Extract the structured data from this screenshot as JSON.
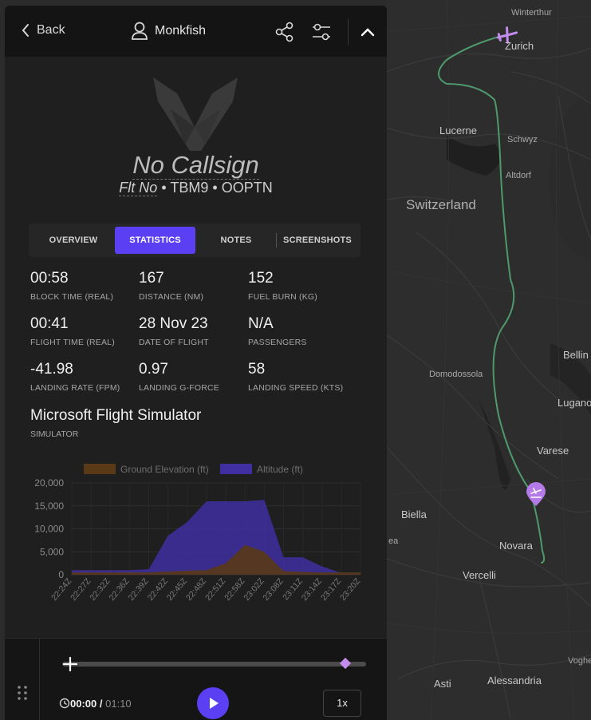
{
  "header": {
    "back_label": "Back",
    "user_name": "Monkfish",
    "icons": [
      "chevron-left-icon",
      "user-icon",
      "share-icon",
      "sliders-icon",
      "chevron-up-icon"
    ]
  },
  "flight": {
    "callsign": "No Callsign",
    "flight_no_label": "Flt No",
    "aircraft": "TBM9",
    "registration": "OOPTN",
    "separator": "•"
  },
  "tabs": [
    {
      "label": "OVERVIEW",
      "active": false
    },
    {
      "label": "STATISTICS",
      "active": true
    },
    {
      "label": "NOTES",
      "active": false
    },
    {
      "label": "SCREENSHOTS",
      "active": false
    }
  ],
  "stats": [
    {
      "value": "00:58",
      "label": "BLOCK TIME (REAL)"
    },
    {
      "value": "167",
      "label": "DISTANCE (NM)"
    },
    {
      "value": "152",
      "label": "FUEL BURN (KG)"
    },
    {
      "value": "00:41",
      "label": "FLIGHT TIME (REAL)"
    },
    {
      "value": "28 Nov 23",
      "label": "DATE OF FLIGHT"
    },
    {
      "value": "N/A",
      "label": "PASSENGERS"
    },
    {
      "value": "-41.98",
      "label": "LANDING RATE (FPM)"
    },
    {
      "value": "0.97",
      "label": "LANDING G-FORCE"
    },
    {
      "value": "58",
      "label": "LANDING SPEED (KTS)"
    }
  ],
  "simulator": {
    "value": "Microsoft Flight Simulator",
    "label": "SIMULATOR"
  },
  "chart_data": {
    "type": "area",
    "x": [
      "22:24Z",
      "22:27Z",
      "22:32Z",
      "22:36Z",
      "22:39Z",
      "22:42Z",
      "22:45Z",
      "22:48Z",
      "22:51Z",
      "22:58Z",
      "23:02Z",
      "23:08Z",
      "23:11Z",
      "23:14Z",
      "23:17Z",
      "23:20Z"
    ],
    "series": [
      {
        "name": "Ground Elevation (ft)",
        "color": "#5a3a16",
        "values": [
          500,
          500,
          500,
          500,
          500,
          700,
          900,
          1000,
          2500,
          6500,
          5000,
          800,
          600,
          500,
          500,
          500
        ]
      },
      {
        "name": "Altitude (ft)",
        "color": "#3f2fa0",
        "values": [
          1000,
          1000,
          1000,
          1000,
          1200,
          8500,
          11500,
          16000,
          16000,
          16000,
          16300,
          3800,
          3800,
          1800,
          400,
          400
        ]
      }
    ],
    "ylim": [
      0,
      20000
    ],
    "yticks": [
      "0",
      "5,000",
      "10,000",
      "15,000",
      "20,000"
    ],
    "grid": true,
    "legend": "top"
  },
  "player": {
    "current_time": "00:00",
    "separator": "/",
    "total_time": "01:10",
    "speed": "1x",
    "progress": 0.0,
    "marker_position": 0.96,
    "icons": [
      "drag-grip-icon",
      "history-icon",
      "play-icon"
    ]
  },
  "map": {
    "labels": [
      {
        "text": "Winterthur",
        "size": "small"
      },
      {
        "text": "Zurich",
        "size": "normal"
      },
      {
        "text": "Lucerne",
        "size": "normal"
      },
      {
        "text": "Schwyz",
        "size": "small"
      },
      {
        "text": "Altdorf",
        "size": "small"
      },
      {
        "text": "Switzerland",
        "size": "big"
      },
      {
        "text": "Bellin",
        "size": "normal"
      },
      {
        "text": "Domodossola",
        "size": "small"
      },
      {
        "text": "Lugano",
        "size": "normal"
      },
      {
        "text": "Varese",
        "size": "normal"
      },
      {
        "text": "Biella",
        "size": "normal"
      },
      {
        "text": "Novara",
        "size": "normal"
      },
      {
        "text": "Vercelli",
        "size": "normal"
      },
      {
        "text": "Voghe",
        "size": "small"
      },
      {
        "text": "Asti",
        "size": "normal"
      },
      {
        "text": "Alessandria",
        "size": "normal"
      },
      {
        "text": "ea",
        "size": "small"
      }
    ],
    "route_color": "#4f9a6c",
    "icons": [
      "airplane-icon",
      "landing-marker-icon"
    ]
  }
}
